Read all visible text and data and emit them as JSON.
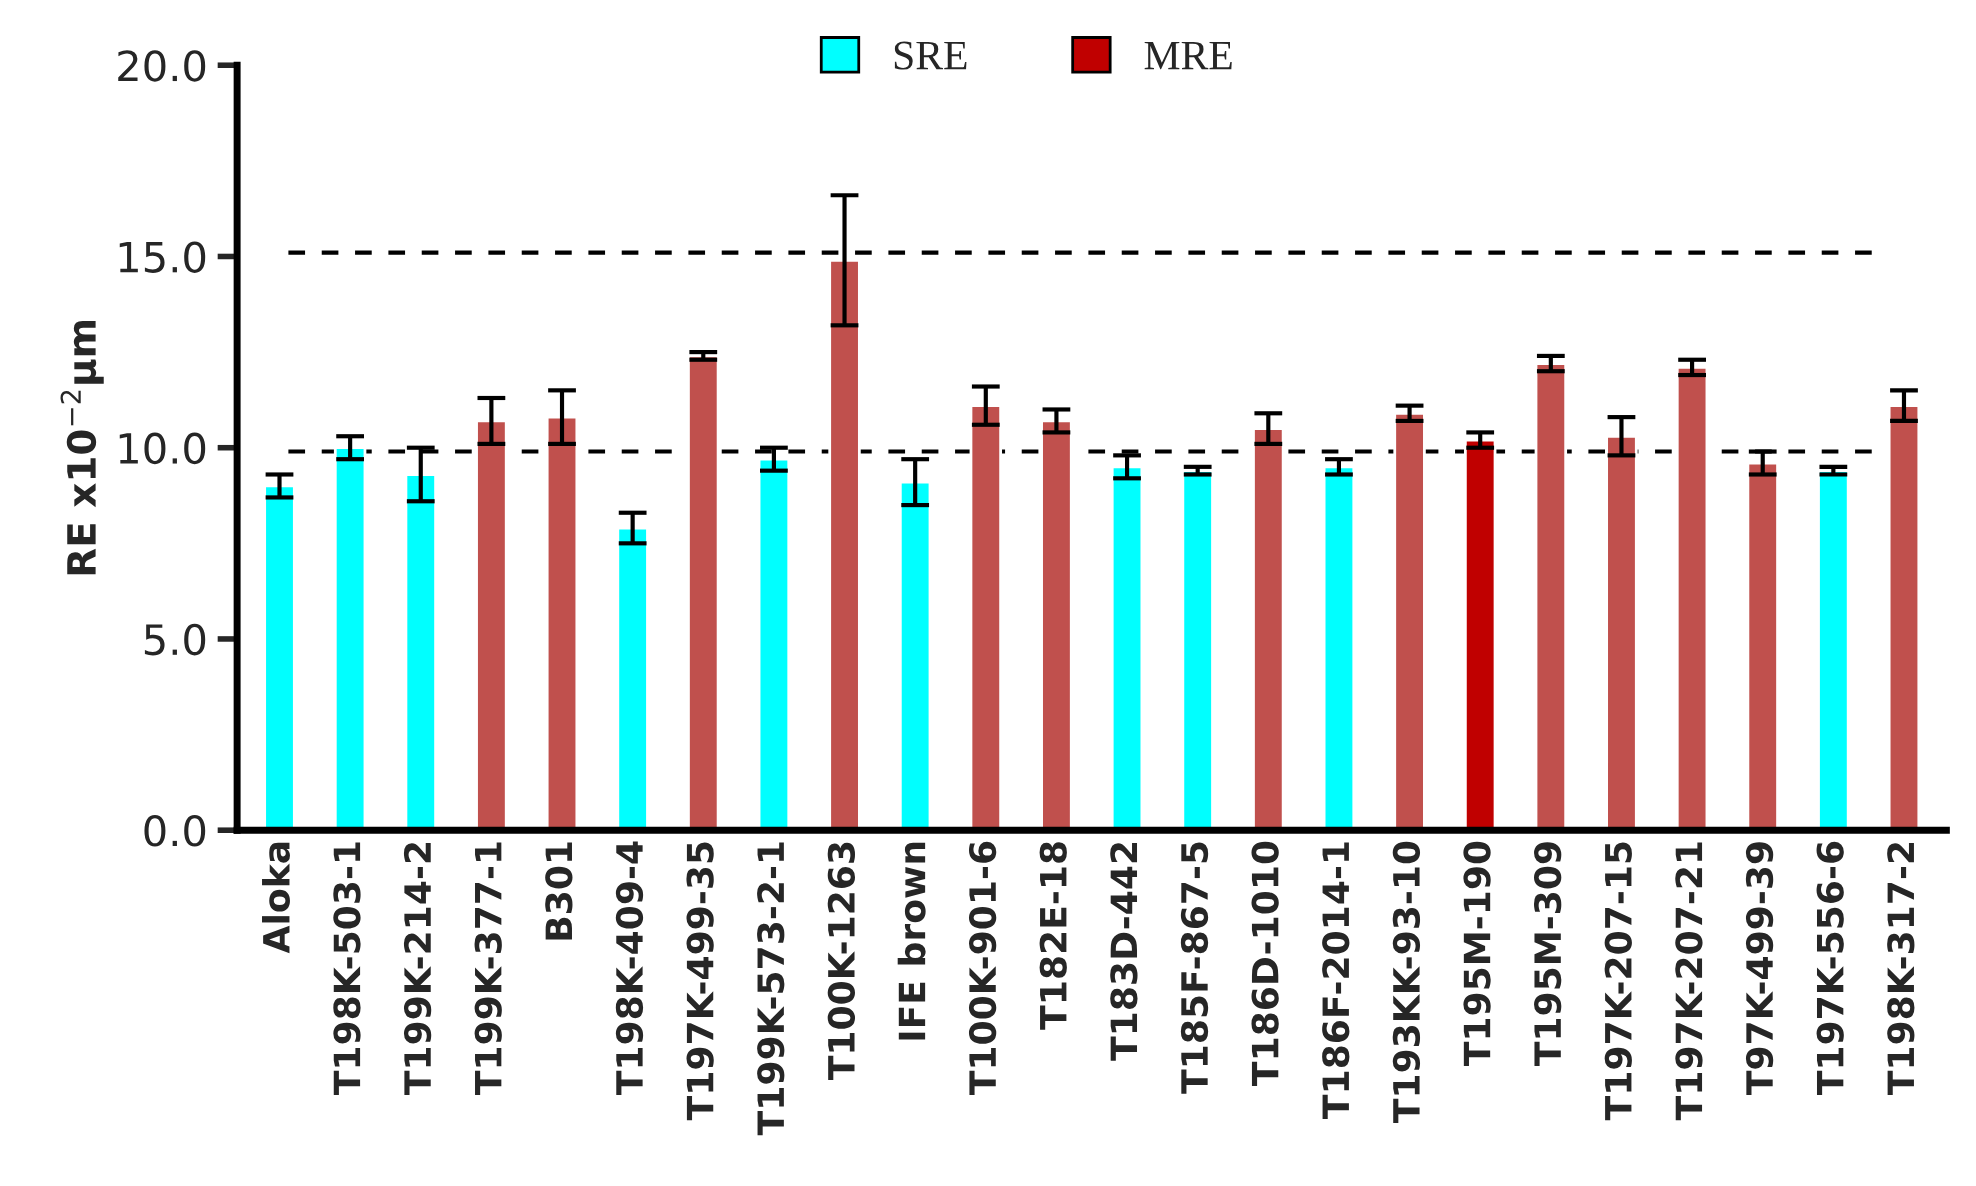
{
  "chart_data": {
    "type": "bar",
    "categories": [
      "Aloka",
      "T198K-503-1",
      "T199K-214-2",
      "T199K-377-1",
      "B301",
      "T198K-409-4",
      "T197K-499-35",
      "T199K-573-2-1",
      "T100K-1263",
      "IFE brown",
      "T100K-901-6",
      "T182E-18",
      "T183D-442",
      "T185F-867-5",
      "T186D-1010",
      "T186F-2014-1",
      "T193KK-93-10",
      "T195M-190",
      "T195M-309",
      "T197K-207-15",
      "T197K-207-21",
      "T97K-499-39",
      "T197K-556-6",
      "T198K-317-2"
    ],
    "ylabel": "RE x10$^{−2}$μm",
    "series": [
      {
        "name": "SRE",
        "color": "#00ffff",
        "values": [
          9.0,
          10.0,
          9.3,
          null,
          null,
          7.9,
          null,
          9.7,
          null,
          9.1,
          null,
          null,
          9.5,
          9.4,
          null,
          9.5,
          null,
          null,
          null,
          null,
          null,
          null,
          9.4,
          null
        ],
        "errors": [
          0.3,
          0.3,
          0.7,
          null,
          null,
          0.4,
          null,
          0.3,
          null,
          0.6,
          null,
          null,
          0.3,
          0.1,
          null,
          0.2,
          null,
          null,
          null,
          null,
          null,
          null,
          0.1,
          null
        ]
      },
      {
        "name": "MRE",
        "color": "#c00000",
        "colors": [
          null,
          null,
          null,
          "#c0504d",
          "#c0504d",
          null,
          "#c0504d",
          null,
          "#c0504d",
          null,
          "#c0504d",
          "#c0504d",
          null,
          null,
          "#c0504d",
          null,
          "#c0504d",
          "#c00000",
          "#c0504d",
          "#c0504d",
          "#c0504d",
          "#c0504d",
          null,
          "#c0504d"
        ],
        "values": [
          null,
          null,
          null,
          10.7,
          10.8,
          null,
          12.4,
          null,
          14.9,
          null,
          11.1,
          10.7,
          null,
          null,
          10.5,
          null,
          10.9,
          10.2,
          12.2,
          10.3,
          12.1,
          9.6,
          null,
          11.1
        ],
        "errors": [
          null,
          null,
          null,
          0.6,
          0.7,
          null,
          0.1,
          null,
          1.7,
          null,
          0.5,
          0.3,
          null,
          null,
          0.4,
          null,
          0.2,
          0.2,
          0.2,
          0.5,
          0.2,
          0.3,
          null,
          0.4
        ]
      }
    ],
    "ylim": [
      0,
      20
    ],
    "yticks": [
      {
        "value": 0,
        "label": "0.0"
      },
      {
        "value": 5,
        "label": "5.0"
      },
      {
        "value": 10,
        "label": "10.0"
      },
      {
        "value": 15,
        "label": "15.0"
      },
      {
        "value": 20,
        "label": "20.0"
      }
    ],
    "ref_lines": [
      {
        "axis": "y",
        "value": 15.1,
        "label": null,
        "color": "#000000",
        "line_style": "dashed"
      },
      {
        "axis": "y",
        "value": 9.9,
        "label": null,
        "color": "#000000",
        "line_style": "dashed"
      }
    ],
    "legend": "top",
    "grid": false
  }
}
